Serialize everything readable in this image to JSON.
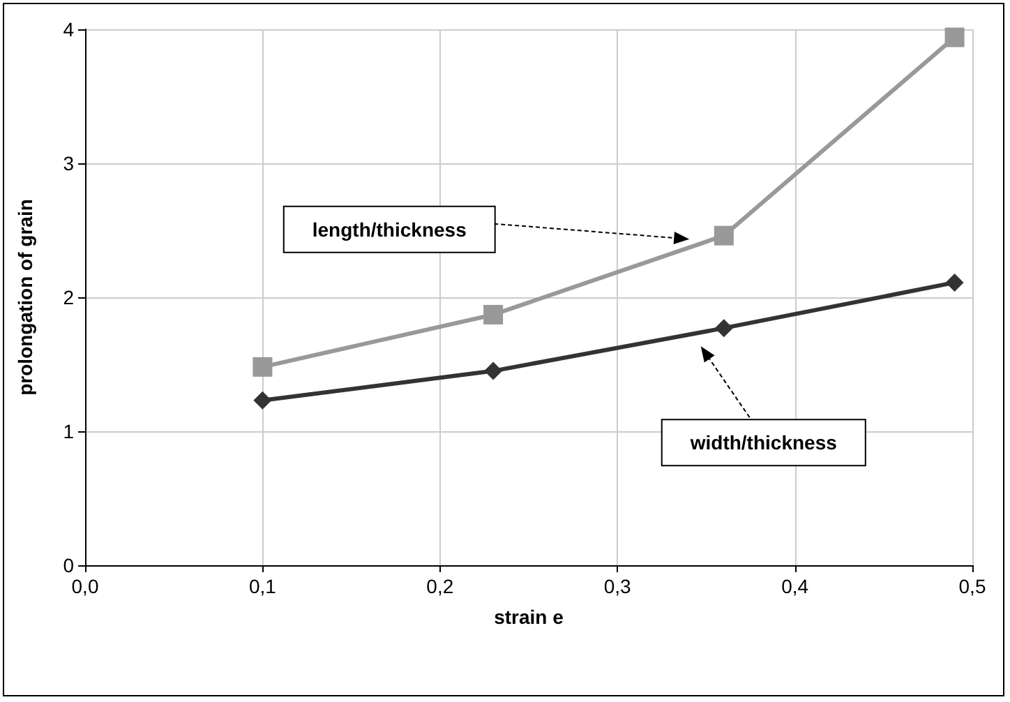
{
  "chart_data": {
    "type": "line",
    "xlabel": "strain e",
    "ylabel": "prolongation of grain",
    "x": [
      0.1,
      0.23,
      0.36,
      0.49
    ],
    "series": [
      {
        "color": "#999999",
        "marker": "square",
        "values": [
          1.48,
          1.87,
          2.46,
          3.94
        ]
      },
      {
        "color": "#333333",
        "marker": "diamond",
        "values": [
          1.23,
          1.45,
          1.77,
          2.11
        ]
      }
    ],
    "annotations": [
      "length/thickness",
      "width/thickness"
    ],
    "xlim": [
      0,
      0.5
    ],
    "xticks": [
      {
        "value": 0,
        "label": "0,0"
      },
      {
        "value": 0.1,
        "label": "0,1"
      },
      {
        "value": 0.2,
        "label": "0,2"
      },
      {
        "value": 0.3,
        "label": "0,3"
      },
      {
        "value": 0.4,
        "label": "0,4"
      },
      {
        "value": 0.5,
        "label": "0,5"
      }
    ],
    "ylim": [
      0,
      4
    ],
    "yticks": [
      0,
      1,
      2,
      3,
      4
    ],
    "grid": true
  }
}
